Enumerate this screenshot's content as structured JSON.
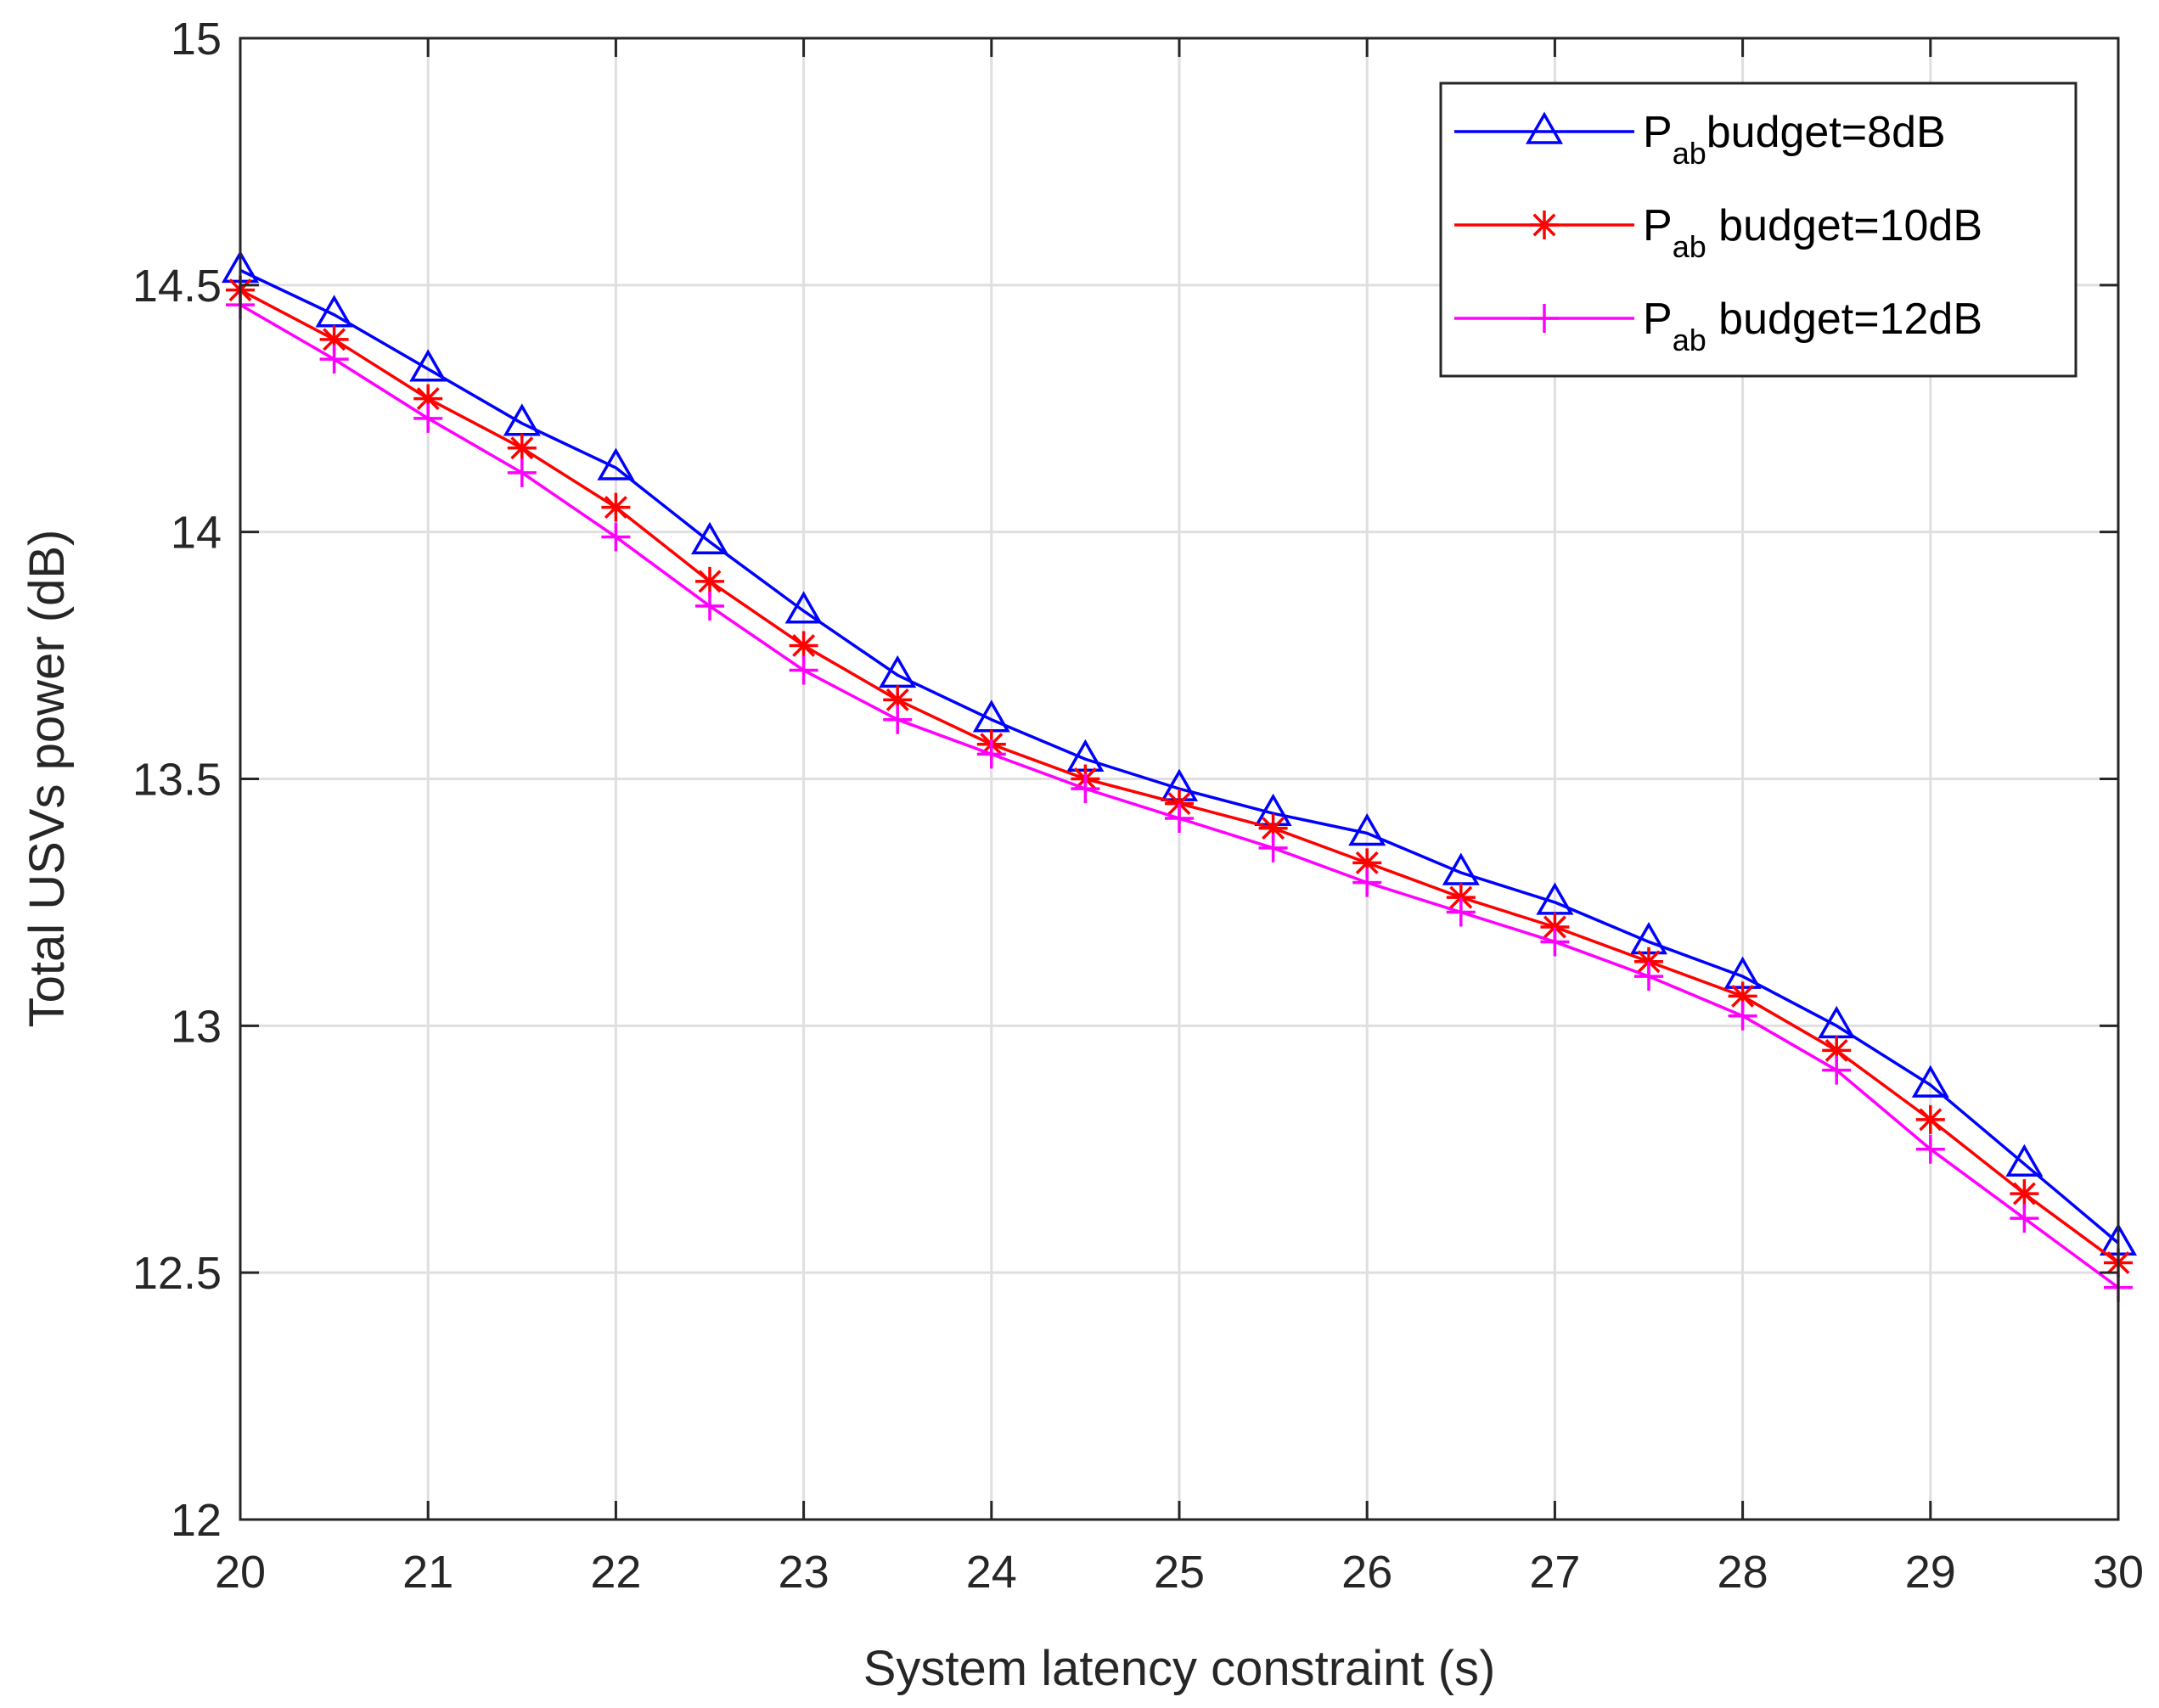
{
  "chart_data": {
    "type": "line",
    "title": "",
    "xlabel": "System latency constraint (s)",
    "ylabel": "Total USVs power (dB)",
    "xlim": [
      20,
      30
    ],
    "ylim": [
      12,
      15
    ],
    "xticks": [
      20,
      21,
      22,
      23,
      24,
      25,
      26,
      27,
      28,
      29,
      30
    ],
    "yticks": [
      12,
      12.5,
      13,
      13.5,
      14,
      14.5,
      15
    ],
    "xtick_labels": [
      "20",
      "21",
      "22",
      "23",
      "24",
      "25",
      "26",
      "27",
      "28",
      "29",
      "30"
    ],
    "ytick_labels": [
      "12",
      "12.5",
      "13",
      "13.5",
      "14",
      "14.5",
      "15"
    ],
    "grid": true,
    "legend_position": "top-right",
    "x": [
      20,
      20.5,
      21,
      21.5,
      22,
      22.5,
      23,
      23.5,
      24,
      24.5,
      25,
      25.5,
      26,
      26.5,
      27,
      27.5,
      28,
      28.5,
      29,
      29.5,
      30
    ],
    "series": [
      {
        "name": "P_ab budget=8dB",
        "legend_main": "P",
        "legend_sub": "ab",
        "legend_rest": "budget=8dB",
        "color": "#0000ff",
        "marker": "triangle",
        "values": [
          14.53,
          14.44,
          14.33,
          14.22,
          14.13,
          13.98,
          13.84,
          13.71,
          13.62,
          13.54,
          13.48,
          13.43,
          13.39,
          13.31,
          13.25,
          13.17,
          13.1,
          13.0,
          12.88,
          12.72,
          12.56
        ]
      },
      {
        "name": "P_ab budget=10dB",
        "legend_main": "P",
        "legend_sub": "ab",
        "legend_rest": " budget=10dB",
        "color": "#ff0000",
        "marker": "asterisk",
        "values": [
          14.49,
          14.39,
          14.27,
          14.17,
          14.05,
          13.9,
          13.77,
          13.66,
          13.57,
          13.5,
          13.45,
          13.4,
          13.33,
          13.26,
          13.2,
          13.13,
          13.06,
          12.95,
          12.81,
          12.66,
          12.52
        ]
      },
      {
        "name": "P_ab budget=12dB",
        "legend_main": "P",
        "legend_sub": "ab",
        "legend_rest": " budget=12dB",
        "color": "#ff00ff",
        "marker": "plus",
        "values": [
          14.46,
          14.35,
          14.23,
          14.12,
          13.99,
          13.85,
          13.72,
          13.62,
          13.55,
          13.48,
          13.42,
          13.36,
          13.29,
          13.23,
          13.17,
          13.1,
          13.02,
          12.91,
          12.75,
          12.61,
          12.47
        ]
      }
    ]
  }
}
